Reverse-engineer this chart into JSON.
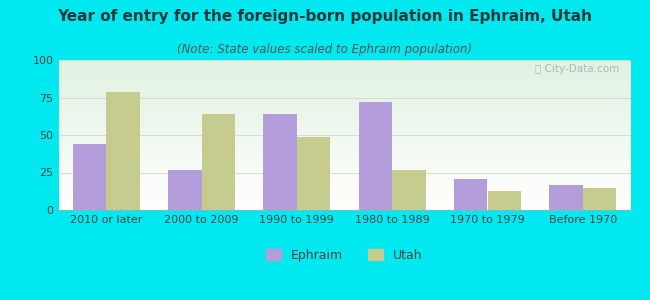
{
  "title": "Year of entry for the foreign-born population in Ephraim, Utah",
  "subtitle": "(Note: State values scaled to Ephraim population)",
  "categories": [
    "2010 or later",
    "2000 to 2009",
    "1990 to 1999",
    "1980 to 1989",
    "1970 to 1979",
    "Before 1970"
  ],
  "ephraim_values": [
    44,
    27,
    64,
    72,
    21,
    17
  ],
  "utah_values": [
    79,
    64,
    49,
    27,
    13,
    15
  ],
  "ephraim_color": "#b39ddb",
  "utah_color": "#c5cc8e",
  "background_color": "#00e8f0",
  "plot_bg_color": "#eaf4e8",
  "ylim": [
    0,
    100
  ],
  "yticks": [
    0,
    25,
    50,
    75,
    100
  ],
  "bar_width": 0.35,
  "legend_labels": [
    "Ephraim",
    "Utah"
  ],
  "title_fontsize": 11,
  "subtitle_fontsize": 8.5,
  "tick_fontsize": 8,
  "legend_fontsize": 9,
  "title_color": "#1a3a3a",
  "subtitle_color": "#555555",
  "tick_color": "#444444"
}
